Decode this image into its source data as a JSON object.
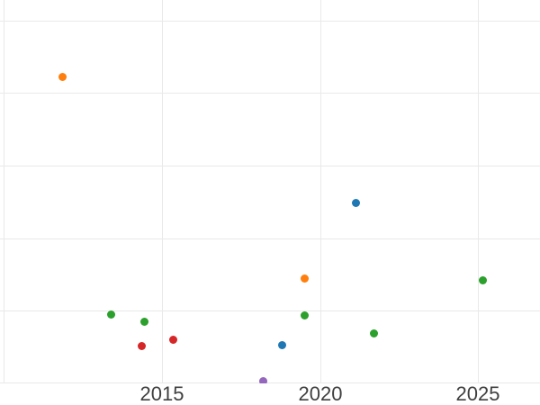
{
  "chart_data": {
    "type": "scatter",
    "title": "",
    "xlabel": "",
    "ylabel": "",
    "grid": true,
    "legend": "none",
    "background_color": "#ffffff",
    "grid_color": "#e9e9e9",
    "tick_label_color": "#3f3f3f",
    "xlim": [
      2009.89,
      2026.95
    ],
    "ylim": [
      0,
      5.28
    ],
    "x_ticks": [
      {
        "value": 2010,
        "label": ""
      },
      {
        "value": 2015,
        "label": "2015"
      },
      {
        "value": 2020,
        "label": "2020"
      },
      {
        "value": 2025,
        "label": "2025"
      }
    ],
    "y_gridlines": [
      0,
      1,
      2,
      3,
      4,
      5
    ],
    "y_tick_labels": [],
    "series": [
      {
        "name": "orange",
        "color": "#ff7f0e",
        "points": [
          {
            "x": 2011.87,
            "y": 4.22
          },
          {
            "x": 2019.52,
            "y": 1.44
          }
        ]
      },
      {
        "name": "blue",
        "color": "#1f77b4",
        "points": [
          {
            "x": 2021.14,
            "y": 2.48
          },
          {
            "x": 2018.81,
            "y": 0.53
          }
        ]
      },
      {
        "name": "green",
        "color": "#2ca02c",
        "points": [
          {
            "x": 2013.39,
            "y": 0.95
          },
          {
            "x": 2014.46,
            "y": 0.85
          },
          {
            "x": 2019.52,
            "y": 0.94
          },
          {
            "x": 2021.71,
            "y": 0.69
          },
          {
            "x": 2025.15,
            "y": 1.42
          }
        ]
      },
      {
        "name": "red",
        "color": "#d62728",
        "points": [
          {
            "x": 2014.38,
            "y": 0.52
          },
          {
            "x": 2015.37,
            "y": 0.6
          }
        ]
      },
      {
        "name": "purple",
        "color": "#9467bd",
        "points": [
          {
            "x": 2018.21,
            "y": 0.03
          }
        ]
      }
    ]
  }
}
